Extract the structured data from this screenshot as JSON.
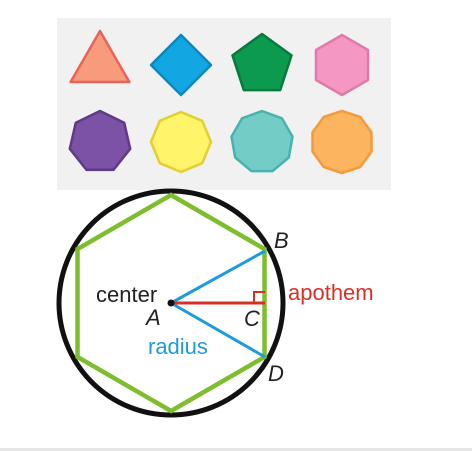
{
  "polygons": [
    {
      "name": "triangle",
      "sides": 3,
      "fill": "#F79B7B",
      "stroke": "#E8635A"
    },
    {
      "name": "square",
      "sides": 4,
      "fill": "#12A7E2",
      "stroke": "#0B88BE"
    },
    {
      "name": "pentagon",
      "sides": 5,
      "fill": "#0C9A4E",
      "stroke": "#087A3C"
    },
    {
      "name": "hexagon",
      "sides": 6,
      "fill": "#F497C2",
      "stroke": "#E17AAA"
    },
    {
      "name": "heptagon",
      "sides": 7,
      "fill": "#7B52A6",
      "stroke": "#5E3A88"
    },
    {
      "name": "octagon",
      "sides": 8,
      "fill": "#FFF46A",
      "stroke": "#E3CF2E"
    },
    {
      "name": "nonagon",
      "sides": 9,
      "fill": "#73CCC6",
      "stroke": "#48B3AE"
    },
    {
      "name": "decagon",
      "sides": 10,
      "fill": "#FDB45E",
      "stroke": "#F39A3B"
    }
  ],
  "diagram": {
    "labels": {
      "center": "center",
      "A": "A",
      "B": "B",
      "C": "C",
      "D": "D",
      "apothem": "apothem",
      "radius": "radius"
    },
    "colors": {
      "circle": "#111111",
      "hexagon": "#7DBE2D",
      "radius": "#1E9BDA",
      "apothem": "#D93025"
    }
  }
}
